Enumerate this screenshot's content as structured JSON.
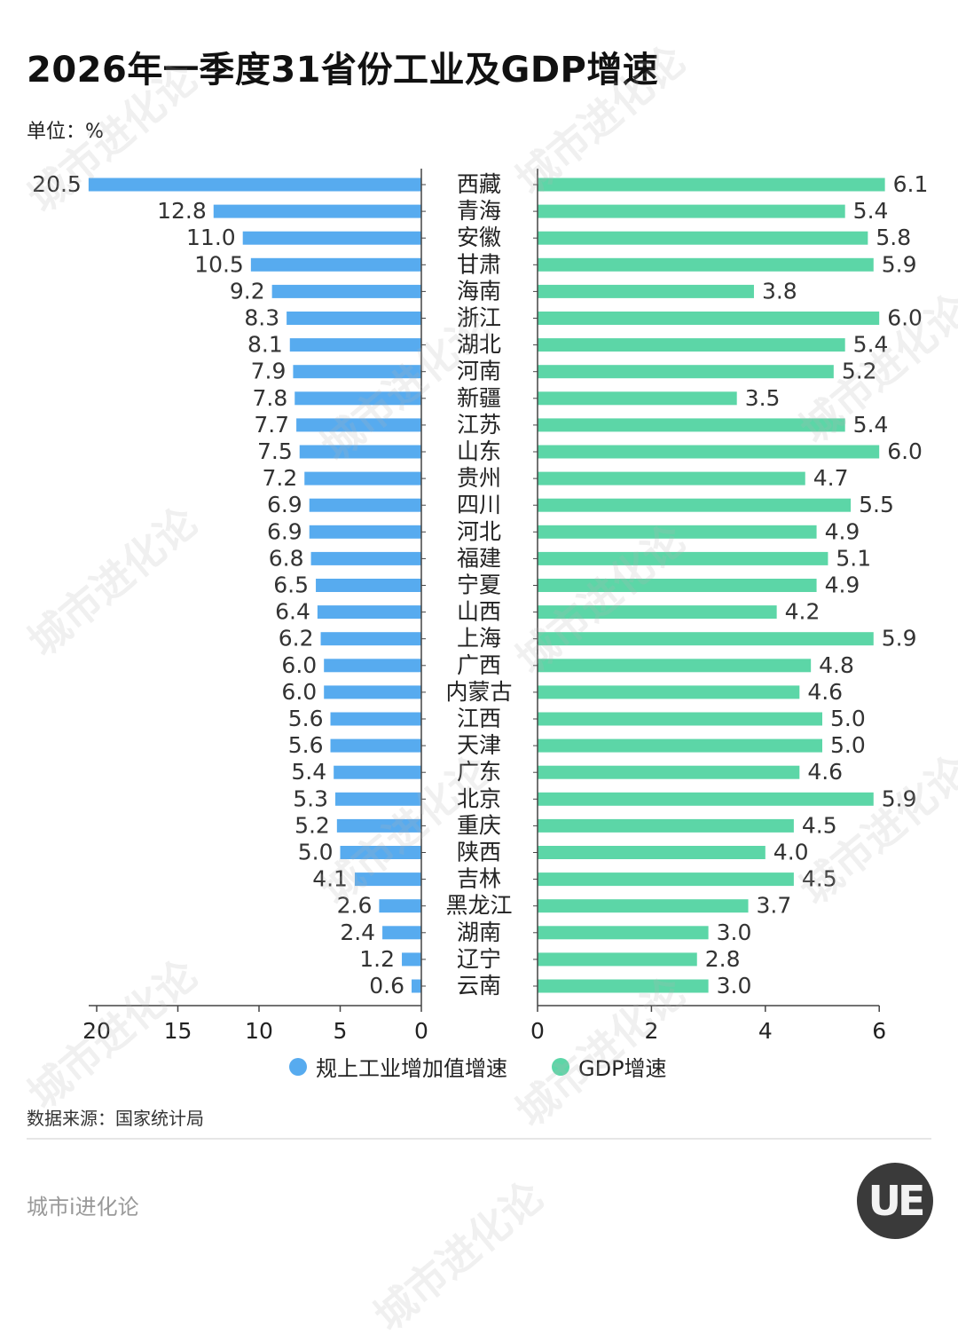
{
  "title": "2026年一季度31省份工业及GDP增速",
  "unit": "单位：%",
  "source": "数据来源：国家统计局",
  "footer": "城市i进化论",
  "logo_text": "UE",
  "watermark": "城市进化论",
  "legend": [
    {
      "label": "规上工业增加值增速",
      "color": "#57abef"
    },
    {
      "label": "GDP增速",
      "color": "#5cd6a7"
    }
  ],
  "chart_data": {
    "type": "bar",
    "categories": [
      "西藏",
      "青海",
      "安徽",
      "甘肃",
      "海南",
      "浙江",
      "湖北",
      "河南",
      "新疆",
      "江苏",
      "山东",
      "贵州",
      "四川",
      "河北",
      "福建",
      "宁夏",
      "山西",
      "上海",
      "广西",
      "内蒙古",
      "江西",
      "天津",
      "广东",
      "北京",
      "重庆",
      "陕西",
      "吉林",
      "黑龙江",
      "湖南",
      "辽宁",
      "云南"
    ],
    "series": [
      {
        "name": "规上工业增加值增速",
        "color": "#57abef",
        "values": [
          20.5,
          12.8,
          11.0,
          10.5,
          9.2,
          8.3,
          8.1,
          7.9,
          7.8,
          7.7,
          7.5,
          7.2,
          6.9,
          6.9,
          6.8,
          6.5,
          6.4,
          6.2,
          6.0,
          6.0,
          5.6,
          5.6,
          5.4,
          5.3,
          5.2,
          5.0,
          4.1,
          2.6,
          2.4,
          1.2,
          0.6
        ],
        "labels": [
          "20.5",
          "12.8",
          "11.0",
          "10.5",
          "9.2",
          "8.3",
          "8.1",
          "7.9",
          "7.8",
          "7.7",
          "7.5",
          "7.2",
          "6.9",
          "6.9",
          "6.8",
          "6.5",
          "6.4",
          "6.2",
          "6.0",
          "6.0",
          "5.6",
          "5.6",
          "5.4",
          "5.3",
          "5.2",
          "5.0",
          "4.1",
          "2.6",
          "2.4",
          "1.2",
          "0.6"
        ],
        "xlim": [
          0,
          20
        ],
        "ticks": [
          20,
          15,
          10,
          5,
          0
        ],
        "tick_labels": [
          "20",
          "15",
          "10",
          "5",
          "0"
        ]
      },
      {
        "name": "GDP增速",
        "color": "#5cd6a7",
        "values": [
          6.1,
          5.4,
          5.8,
          5.9,
          3.8,
          6.0,
          5.4,
          5.2,
          3.5,
          5.4,
          6.0,
          4.7,
          5.5,
          4.9,
          5.1,
          4.9,
          4.2,
          5.9,
          4.8,
          4.6,
          5.0,
          5.0,
          4.6,
          5.9,
          4.5,
          4.0,
          4.5,
          3.7,
          3.0,
          2.8,
          3.0
        ],
        "labels": [
          "6.1",
          "5.4",
          "5.8",
          "5.9",
          "3.8",
          "6.0",
          "5.4",
          "5.2",
          "3.5",
          "5.4",
          "6.0",
          "4.7",
          "5.5",
          "4.9",
          "5.1",
          "4.9",
          "4.2",
          "5.9",
          "4.8",
          "4.6",
          "5.0",
          "5.0",
          "4.6",
          "5.9",
          "4.5",
          "4.0",
          "4.5",
          "3.7",
          "3.0",
          "2.8",
          "3.0"
        ],
        "xlim": [
          0,
          6
        ],
        "ticks": [
          0,
          2,
          4,
          6
        ],
        "tick_labels": [
          "0",
          "2",
          "4",
          "6"
        ]
      }
    ],
    "grid": false,
    "legend_position": "bottom-center"
  }
}
